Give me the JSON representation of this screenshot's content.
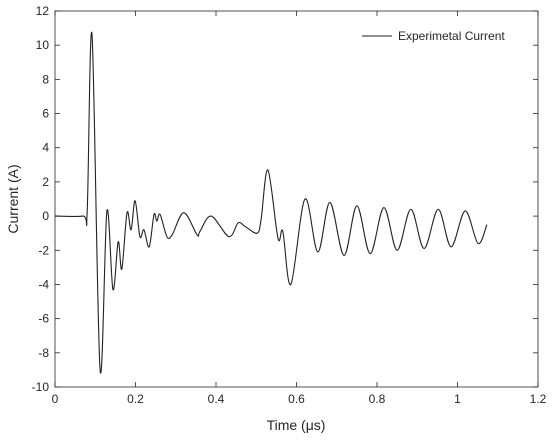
{
  "chart_data": {
    "type": "line",
    "xlabel": "Time (μs)",
    "ylabel": "Current (A)",
    "x": [
      0,
      0.07,
      0.08,
      0.092,
      0.112,
      0.129,
      0.144,
      0.157,
      0.166,
      0.179,
      0.189,
      0.199,
      0.211,
      0.221,
      0.234,
      0.246,
      0.253,
      0.261,
      0.278,
      0.291,
      0.32,
      0.353,
      0.36,
      0.388,
      0.432,
      0.455,
      0.472,
      0.502,
      0.512,
      0.529,
      0.554,
      0.566,
      0.586,
      0.621,
      0.653,
      0.683,
      0.718,
      0.75,
      0.783,
      0.817,
      0.85,
      0.884,
      0.917,
      0.952,
      0.984,
      1.019,
      1.051,
      1.073
    ],
    "series": [
      {
        "name": "Experimetal Current",
        "color": "#222222",
        "values": [
          0,
          0,
          0.3,
          10.6,
          -9,
          0.3,
          -4.3,
          -1.5,
          -3.1,
          0.2,
          -0.8,
          0.9,
          -1.2,
          -0.8,
          -1.8,
          0.1,
          -0.3,
          0.1,
          -1.2,
          -1.1,
          0.2,
          -1.1,
          -0.9,
          0,
          -1.2,
          -0.4,
          -0.6,
          -1.0,
          -0.2,
          2.7,
          -1.3,
          -0.9,
          -4.0,
          1.0,
          -2.1,
          0.8,
          -2.3,
          0.6,
          -2.2,
          0.5,
          -2.0,
          0.4,
          -1.9,
          0.4,
          -1.8,
          0.3,
          -1.6,
          -0.5
        ]
      }
    ],
    "xlim": [
      0,
      1.2
    ],
    "xticks": [
      0,
      0.2,
      0.4,
      0.6,
      0.8,
      1,
      1.2
    ],
    "ylim": [
      -10,
      12
    ],
    "yticks": [
      -10,
      -8,
      -6,
      -4,
      -2,
      0,
      2,
      4,
      6,
      8,
      10,
      12
    ],
    "legend": "upper right"
  }
}
